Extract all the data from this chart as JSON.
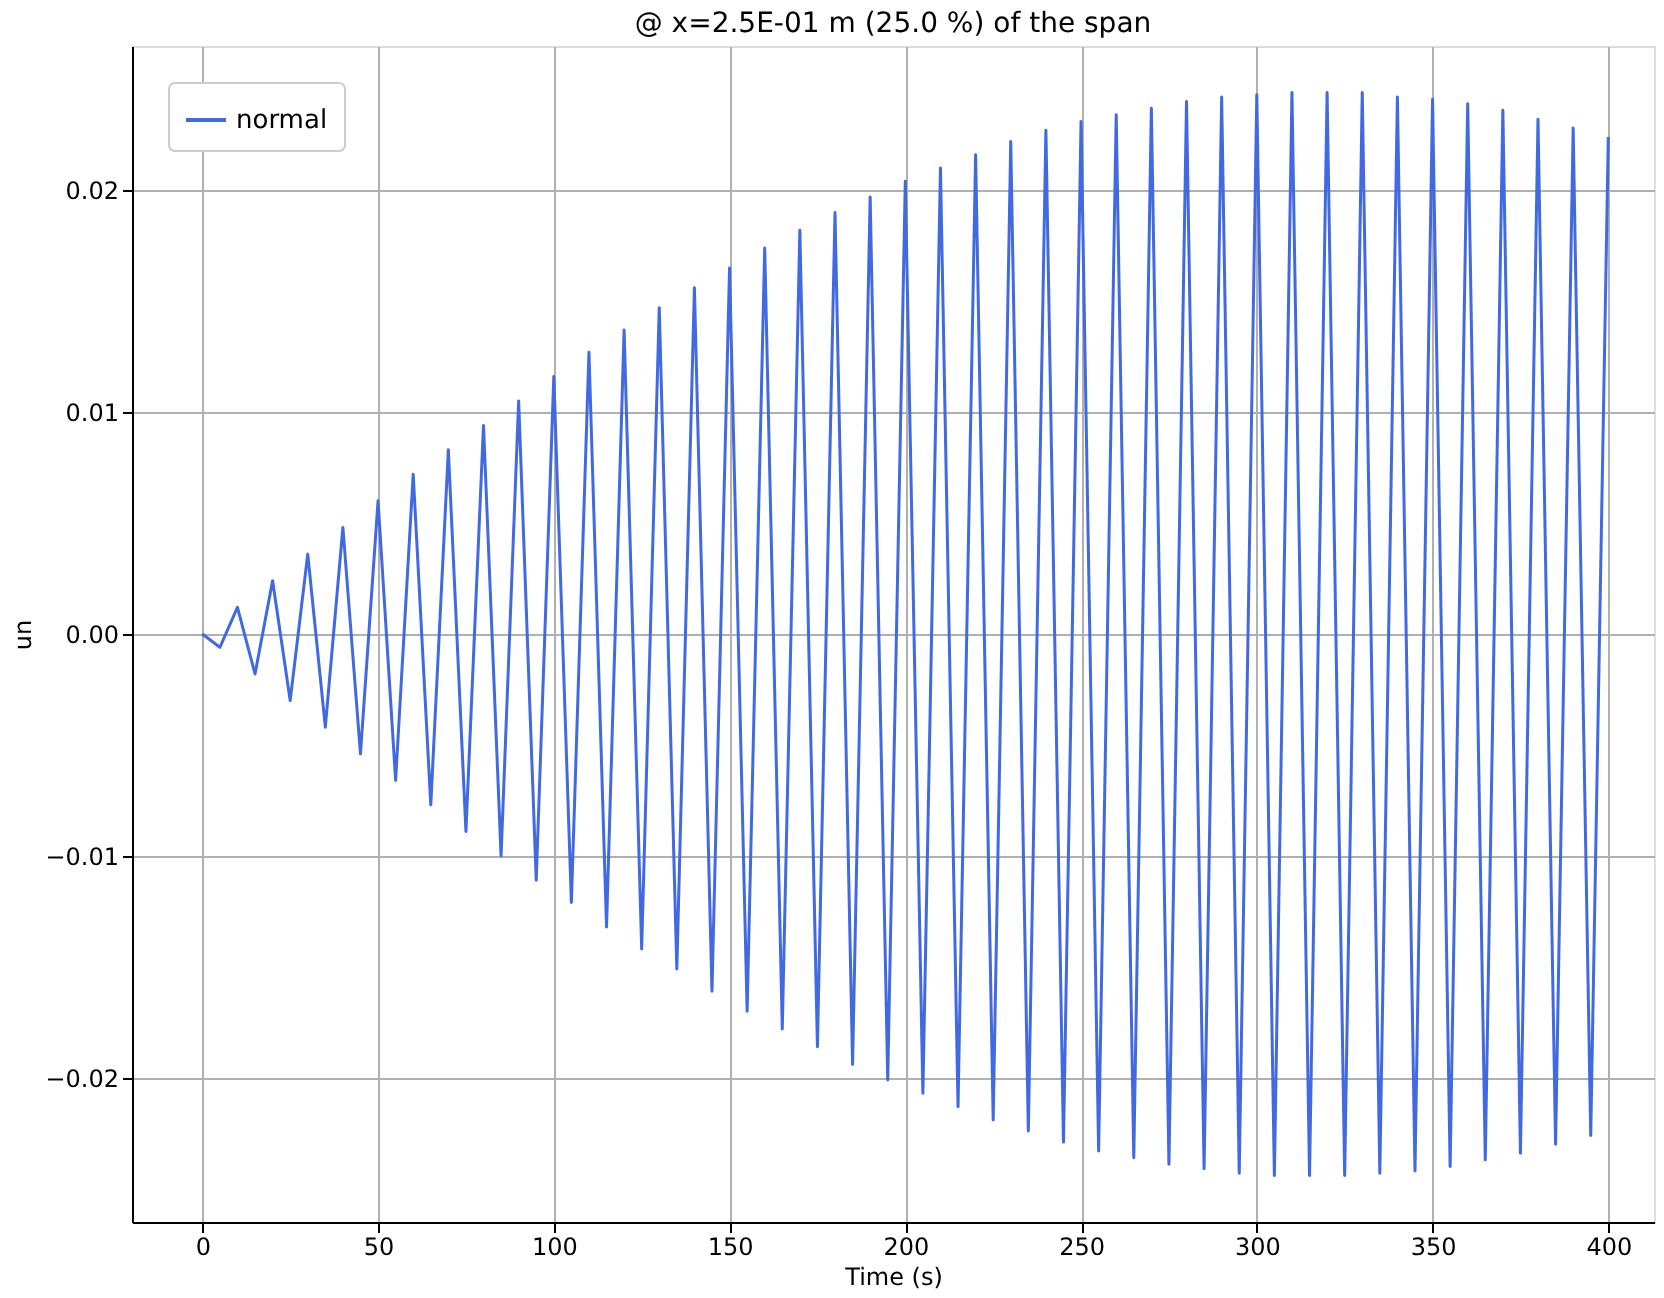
{
  "chart_data": {
    "type": "line",
    "title": "@ x=2.5E-01 m (25.0 %) of the span",
    "xlabel": "Time (s)",
    "ylabel": "un",
    "xlim": [
      -20,
      413
    ],
    "ylim": [
      -0.0265,
      0.0265
    ],
    "xticks": [
      0,
      50,
      100,
      150,
      200,
      250,
      300,
      350,
      400
    ],
    "yticks": [
      {
        "value": -0.02,
        "label": "−0.02"
      },
      {
        "value": -0.01,
        "label": "−0.01"
      },
      {
        "value": 0,
        "label": "0.00"
      },
      {
        "value": 0.01,
        "label": "0.01"
      },
      {
        "value": 0.02,
        "label": "0.02"
      }
    ],
    "grid": true,
    "legend": "top left",
    "marker": "none",
    "line_style": "solid",
    "x": [
      0,
      5,
      10,
      15,
      20,
      25,
      30,
      35,
      40,
      45,
      50,
      55,
      60,
      65,
      70,
      75,
      80,
      85,
      90,
      95,
      100,
      105,
      110,
      115,
      120,
      125,
      130,
      135,
      140,
      145,
      150,
      155,
      160,
      165,
      170,
      175,
      180,
      185,
      190,
      195,
      200,
      205,
      210,
      215,
      220,
      225,
      230,
      235,
      240,
      245,
      250,
      255,
      260,
      265,
      270,
      275,
      280,
      285,
      290,
      295,
      300,
      305,
      310,
      315,
      320,
      325,
      330,
      335,
      340,
      345,
      350,
      355,
      360,
      365,
      370,
      375,
      380,
      385,
      390,
      395,
      400
    ],
    "series": [
      {
        "name": "normal",
        "color": "#4169e1",
        "values": [
          0,
          -0.0006,
          0.0012,
          -0.0018,
          0.0024,
          -0.003,
          0.0036,
          -0.0042,
          0.0048,
          -0.0054,
          0.006,
          -0.0066,
          0.0072,
          -0.0077,
          0.0083,
          -0.0089,
          0.0094,
          -0.01,
          0.0105,
          -0.0111,
          0.0116,
          -0.0121,
          0.0127,
          -0.0132,
          0.0137,
          -0.0142,
          0.0147,
          -0.0151,
          0.0156,
          -0.0161,
          0.0165,
          -0.017,
          0.0174,
          -0.0178,
          0.0182,
          -0.0186,
          0.019,
          -0.0194,
          0.0197,
          -0.0201,
          0.0204,
          -0.0207,
          0.021,
          -0.0213,
          0.0216,
          -0.0219,
          0.0222,
          -0.0224,
          0.0227,
          -0.0229,
          0.0231,
          -0.0233,
          0.0234,
          -0.0236,
          0.0237,
          -0.0239,
          0.024,
          -0.0241,
          0.0242,
          -0.0243,
          0.0243,
          -0.0244,
          0.0244,
          -0.0244,
          0.0244,
          -0.0244,
          0.0244,
          -0.0243,
          0.0242,
          -0.0242,
          0.0241,
          -0.024,
          0.0239,
          -0.0237,
          0.0236,
          -0.0234,
          0.0232,
          -0.023,
          0.0228,
          -0.0226,
          0.0224
        ]
      }
    ]
  }
}
